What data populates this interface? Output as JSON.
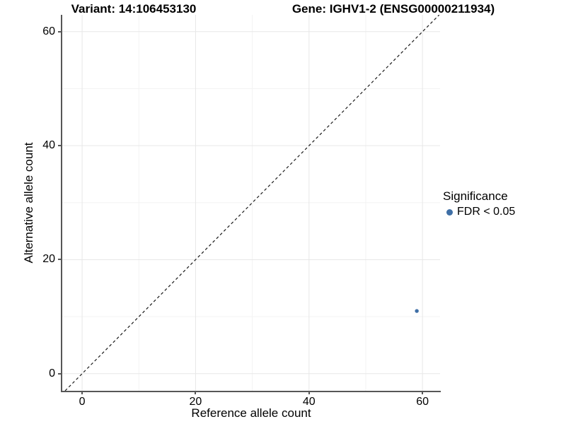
{
  "chart_data": {
    "type": "scatter",
    "titles": [
      "Variant: 14:106453130",
      "Gene: IGHV1-2 (ENSG00000211934)"
    ],
    "xlabel": "Reference allele count",
    "ylabel": "Alternative allele count",
    "xlim": [
      -3.5,
      63.1
    ],
    "ylim": [
      -3.0,
      62.95
    ],
    "x_ticks": [
      0,
      20,
      40,
      60
    ],
    "y_ticks": [
      0,
      20,
      40,
      60
    ],
    "x_minor": [
      10,
      30,
      50
    ],
    "y_minor": [
      10,
      30,
      50
    ],
    "grid": "major+minor",
    "identity_line": {
      "equation": "y = x",
      "style": "dashed",
      "color": "#1a1a1a"
    },
    "series": [
      {
        "name": "FDR < 0.05",
        "color": "#3f6fa6",
        "point_radius": 2.7,
        "points": [
          {
            "x": 59,
            "y": 11
          }
        ]
      }
    ],
    "legend": {
      "position": "right",
      "title": "Significance",
      "items": [
        {
          "label": "FDR < 0.05",
          "color": "#3f6fa6"
        }
      ]
    },
    "colors": {
      "grid_major": "#e7e7e7",
      "grid_minor": "#f3f3f3",
      "axis_line": "#565656",
      "text": "#000000",
      "background": "#ffffff"
    }
  }
}
